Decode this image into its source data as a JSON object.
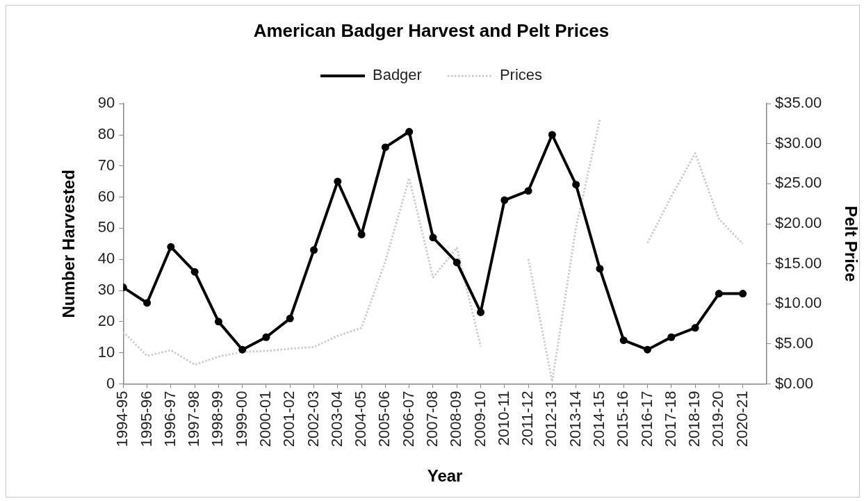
{
  "chart_data": {
    "type": "line",
    "title": "American Badger Harvest and Pelt Prices",
    "xlabel": "Year",
    "ylabel": "Number Harvested",
    "y2label": "Pelt Price",
    "categories": [
      "1994-95",
      "1995-96",
      "1996-97",
      "1997-98",
      "1998-99",
      "1999-00",
      "2000-01",
      "2001-02",
      "2002-03",
      "2003-04",
      "2004-05",
      "2005-06",
      "2006-07",
      "2007-08",
      "2008-09",
      "2009-10",
      "2010-11",
      "2011-12",
      "2012-13",
      "2013-14",
      "2014-15",
      "2015-16",
      "2016-17",
      "2017-18",
      "2018-19",
      "2019-20",
      "2020-21"
    ],
    "series": [
      {
        "name": "Badger",
        "color": "#000000",
        "marker": "circle",
        "line_style": "solid",
        "values": [
          31,
          26,
          44,
          36,
          20,
          11,
          15,
          21,
          43,
          65,
          48,
          76,
          81,
          47,
          39,
          23,
          59,
          62,
          80,
          64,
          37,
          14,
          11,
          15,
          18,
          29,
          29
        ]
      },
      {
        "name": "Prices",
        "color": "#cccccc",
        "axis": "y2",
        "marker": "none",
        "line_style": "dotted",
        "values": [
          6.5,
          3.5,
          4.2,
          2.4,
          3.4,
          4.0,
          4.1,
          4.4,
          4.6,
          6.0,
          7.0,
          15.3,
          25.7,
          13.3,
          17.0,
          4.7,
          null,
          15.6,
          0.3,
          19.5,
          33,
          null,
          17.6,
          23.4,
          28.8,
          20.6,
          17.5
        ]
      }
    ],
    "ylim": [
      0,
      90
    ],
    "yticks": [
      0,
      10,
      20,
      30,
      40,
      50,
      60,
      70,
      80,
      90
    ],
    "y2lim": [
      0,
      35
    ],
    "y2ticks": [
      {
        "value": 0,
        "label": "$0.00"
      },
      {
        "value": 5,
        "label": "$5.00"
      },
      {
        "value": 10,
        "label": "$10.00"
      },
      {
        "value": 15,
        "label": "$15.00"
      },
      {
        "value": 20,
        "label": "$20.00"
      },
      {
        "value": 25,
        "label": "$25.00"
      },
      {
        "value": 30,
        "label": "$30.00"
      },
      {
        "value": 35,
        "label": "$35.00"
      }
    ],
    "grid": false,
    "legend": "top"
  }
}
